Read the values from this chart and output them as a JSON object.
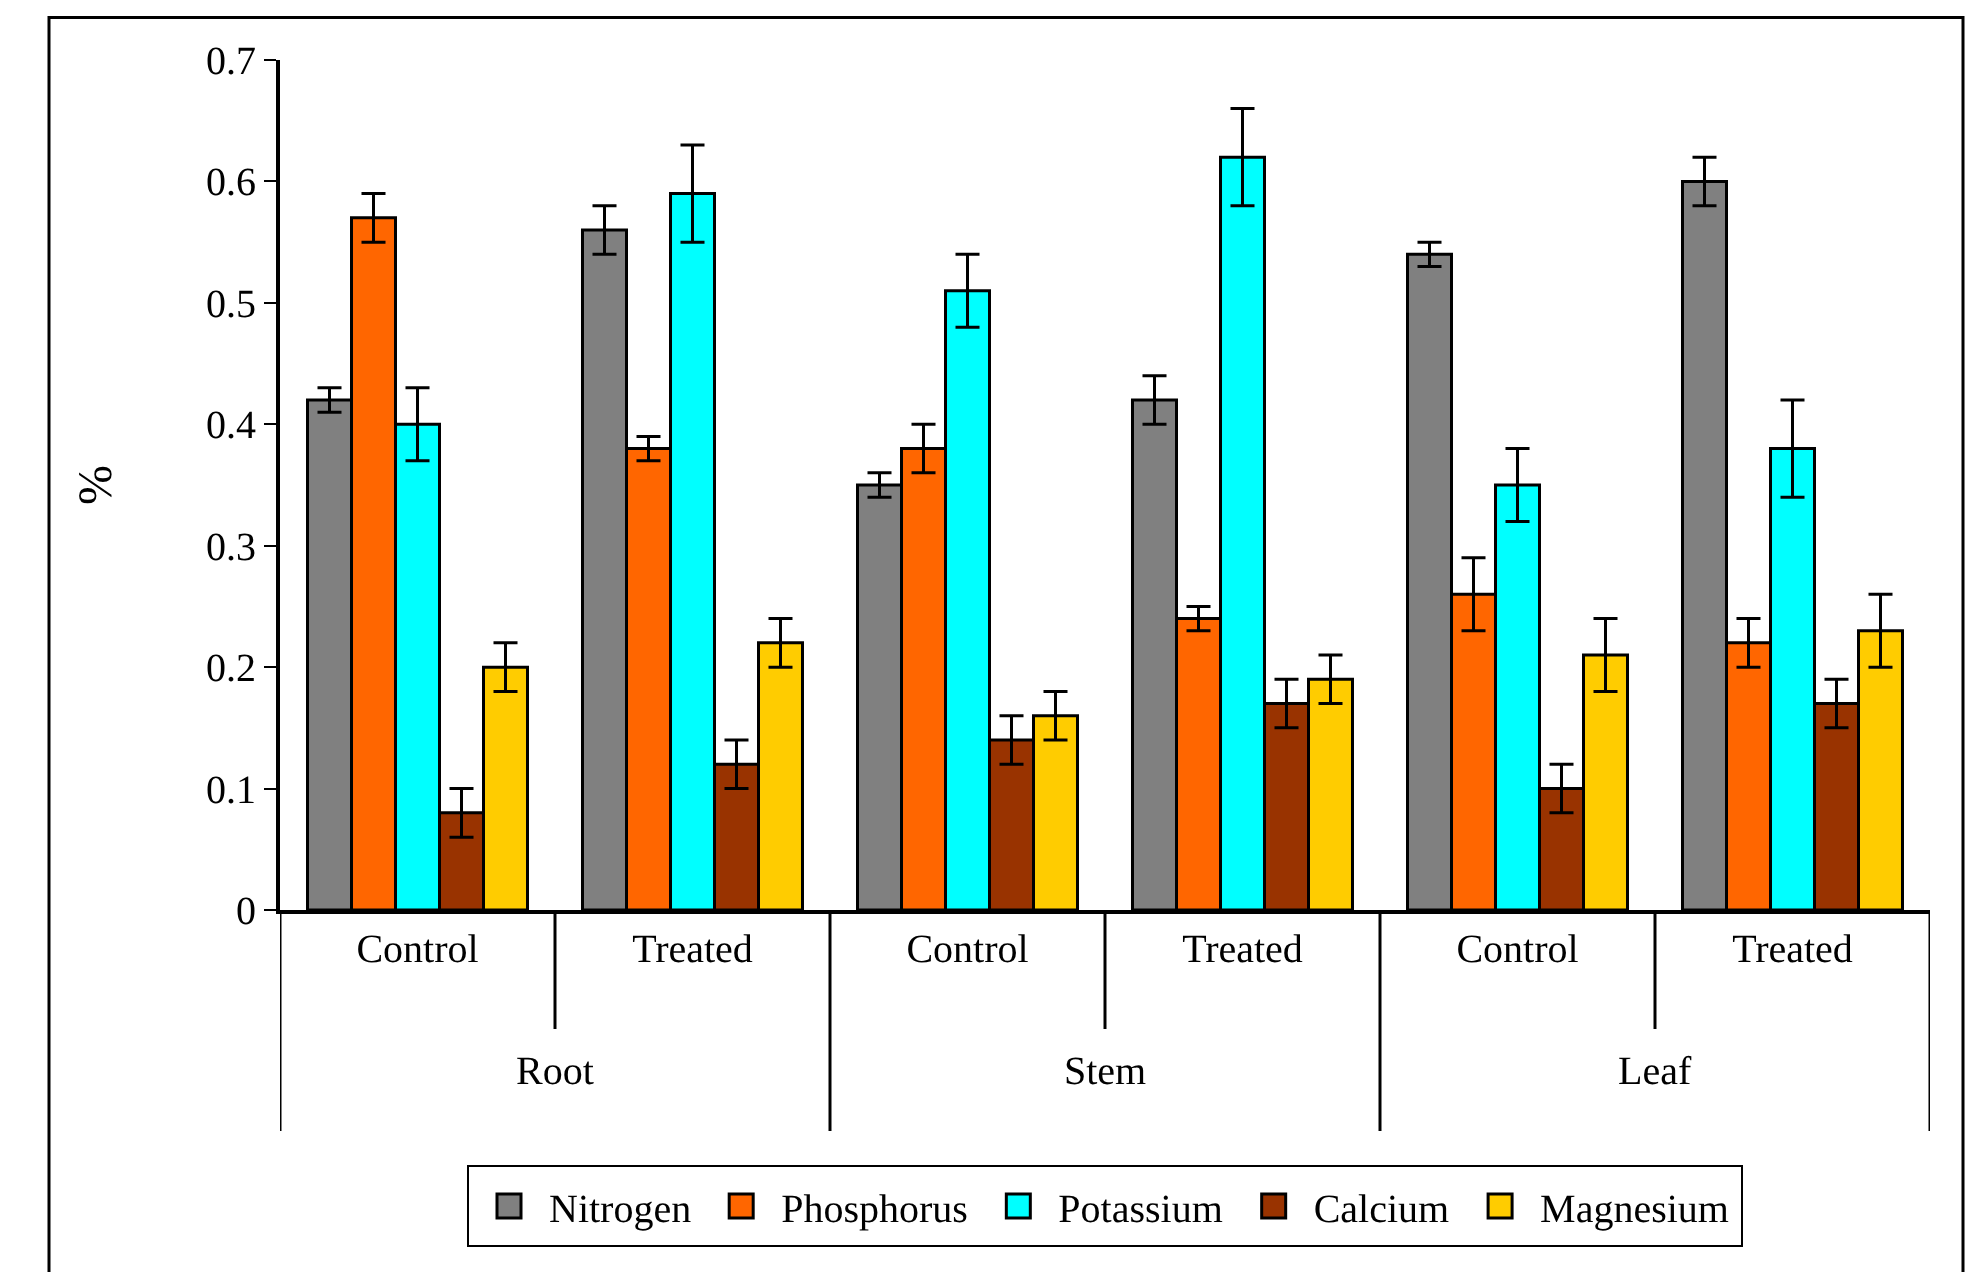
{
  "chart_data": {
    "type": "bar",
    "ylabel": "%",
    "categories": [
      "Control",
      "Treated",
      "Control",
      "Treated",
      "Control",
      "Treated"
    ],
    "series": [
      {
        "name": "Nitrogen",
        "color": "#808080",
        "values": [
          0.42,
          0.56,
          0.35,
          0.42,
          0.54,
          0.6
        ],
        "errors": [
          0.01,
          0.02,
          0.01,
          0.02,
          0.01,
          0.02
        ]
      },
      {
        "name": "Phosphorus",
        "color": "#ff6600",
        "values": [
          0.57,
          0.38,
          0.38,
          0.24,
          0.26,
          0.22
        ],
        "errors": [
          0.02,
          0.01,
          0.02,
          0.01,
          0.03,
          0.02
        ]
      },
      {
        "name": "Potassium",
        "color": "#00ffff",
        "values": [
          0.4,
          0.59,
          0.51,
          0.62,
          0.35,
          0.38
        ],
        "errors": [
          0.03,
          0.04,
          0.03,
          0.04,
          0.03,
          0.04
        ]
      },
      {
        "name": "Calcium",
        "color": "#993300",
        "values": [
          0.08,
          0.12,
          0.14,
          0.17,
          0.1,
          0.17
        ],
        "errors": [
          0.02,
          0.02,
          0.02,
          0.02,
          0.02,
          0.02
        ]
      },
      {
        "name": "Magnesium",
        "color": "#ffcc00",
        "values": [
          0.2,
          0.22,
          0.16,
          0.19,
          0.21,
          0.23
        ],
        "errors": [
          0.02,
          0.02,
          0.02,
          0.02,
          0.03,
          0.03
        ]
      }
    ],
    "annotations": [
      "Root",
      "Stem",
      "Leaf"
    ],
    "ylim": [
      0,
      0.7
    ],
    "yticks": [
      0,
      0.1,
      0.2,
      0.3,
      0.4,
      0.5,
      0.6,
      0.7
    ],
    "grid": false,
    "legend": "bottom"
  }
}
